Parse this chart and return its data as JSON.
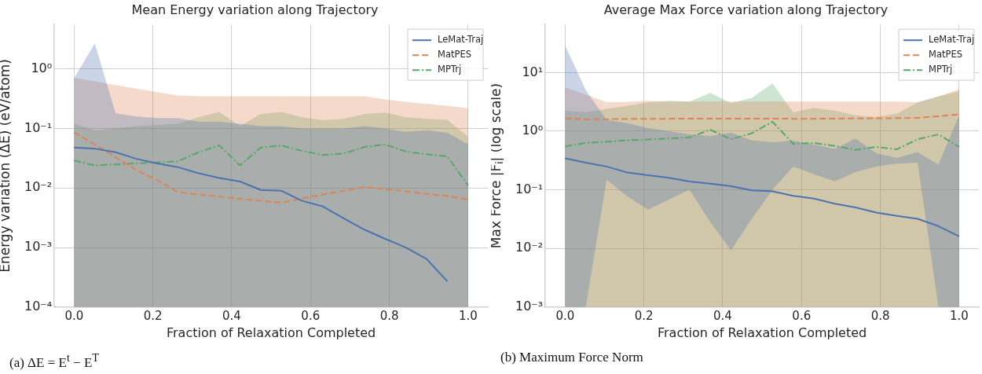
{
  "chart_data": [
    {
      "type": "line",
      "title": "Mean Energy variation along Trajectory",
      "xlabel": "Fraction of Relaxation Completed",
      "ylabel": "Energy variation (ΔE) (eV/atom)",
      "x": [
        0,
        0.0526,
        0.1053,
        0.1579,
        0.2105,
        0.2632,
        0.3158,
        0.3684,
        0.4211,
        0.4737,
        0.5263,
        0.5789,
        0.6316,
        0.6842,
        0.7368,
        0.7895,
        0.8421,
        0.8947,
        0.9474,
        1
      ],
      "series": [
        {
          "name": "LeMat-Traj",
          "color": "#4c72b0",
          "line_style": "solid",
          "values": [
            0.048,
            0.046,
            0.04,
            0.031,
            0.026,
            0.0225,
            0.0177,
            0.0148,
            0.0129,
            0.0093,
            0.009,
            0.0061,
            0.0049,
            0.0031,
            0.002,
            0.0014,
            0.001,
            0.00064,
            0.00027,
            null
          ],
          "upper": [
            0.7,
            2.7,
            0.18,
            0.16,
            0.15,
            0.15,
            0.13,
            0.13,
            0.12,
            0.11,
            0.11,
            0.1,
            0.1,
            0.1,
            0.11,
            0.1,
            0.088,
            0.094,
            0.085,
            0.054
          ],
          "lower": [
            0.0001,
            0.0001,
            0.0001,
            0.0001,
            0.0001,
            0.0001,
            0.0001,
            0.0001,
            0.0001,
            0.0001,
            0.0001,
            0.0001,
            0.0001,
            0.0001,
            0.0001,
            0.0001,
            0.0001,
            0.0001,
            0.0001,
            0.0001
          ]
        },
        {
          "name": "MatPES",
          "color": "#dd8452",
          "line_style": "dashed",
          "values": [
            0.086,
            0.054,
            0.033,
            0.02,
            0.0137,
            0.0086,
            0.0078,
            0.0072,
            0.0066,
            0.0061,
            0.0057,
            0.0067,
            0.0078,
            0.009,
            0.0104,
            0.0096,
            0.0088,
            0.008,
            0.0074,
            0.0064
          ],
          "upper": [
            0.71,
            0.62,
            0.54,
            0.47,
            0.41,
            0.36,
            0.35,
            0.35,
            0.35,
            0.35,
            0.35,
            0.35,
            0.35,
            0.35,
            0.35,
            0.31,
            0.28,
            0.26,
            0.24,
            0.22
          ],
          "lower": [
            0.0001,
            0.0001,
            0.0001,
            0.0001,
            0.0001,
            0.0001,
            0.0001,
            0.0001,
            0.0001,
            0.0001,
            0.0001,
            0.0001,
            0.0001,
            0.0001,
            0.0001,
            0.0001,
            0.0001,
            0.0001,
            0.0001,
            0.0001
          ]
        },
        {
          "name": "MPTrj",
          "color": "#55a868",
          "line_style": "dashdot",
          "values": [
            0.029,
            0.024,
            0.025,
            0.026,
            0.027,
            0.028,
            0.04,
            0.052,
            0.024,
            0.048,
            0.052,
            0.042,
            0.036,
            0.038,
            0.049,
            0.054,
            0.041,
            0.037,
            0.034,
            0.011
          ],
          "upper": [
            0.12,
            0.094,
            0.1,
            0.11,
            0.115,
            0.12,
            0.155,
            0.19,
            0.11,
            0.176,
            0.19,
            0.155,
            0.138,
            0.146,
            0.176,
            0.185,
            0.155,
            0.146,
            0.14,
            0.073
          ],
          "lower": [
            0.0001,
            0.0001,
            0.0001,
            0.0001,
            0.0001,
            0.0001,
            0.0001,
            0.0001,
            0.0001,
            0.0001,
            0.0001,
            0.0001,
            0.0001,
            0.0001,
            0.0001,
            0.0001,
            0.0001,
            0.0001,
            0.0001,
            0.0001
          ]
        }
      ],
      "log": "y",
      "xlim": [
        -0.05,
        1.05
      ],
      "xticks": [
        {
          "value": 0,
          "label": "0.0"
        },
        {
          "value": 0.2,
          "label": "0.2"
        },
        {
          "value": 0.4,
          "label": "0.4"
        },
        {
          "value": 0.6,
          "label": "0.6"
        },
        {
          "value": 0.8,
          "label": "0.8"
        },
        {
          "value": 1,
          "label": "1.0"
        }
      ],
      "ylim": [
        0.0001,
        5.6
      ],
      "yticks": [
        {
          "value": 0.0001,
          "label": "10⁻⁴"
        },
        {
          "value": 0.001,
          "label": "10⁻³"
        },
        {
          "value": 0.01,
          "label": "10⁻²"
        },
        {
          "value": 0.1,
          "label": "10⁻¹"
        },
        {
          "value": 1,
          "label": "10⁰"
        }
      ],
      "grid": true,
      "legend": "top right",
      "annotations": [
        "(a)  ΔE = E$^{t}$ − E$^{T}$"
      ]
    },
    {
      "type": "line",
      "title": "Average Max Force variation along Trajectory",
      "xlabel": "Fraction of Relaxation Completed",
      "ylabel": "Max Force |F$_{i}$| (log scale)",
      "x": [
        0,
        0.0526,
        0.1053,
        0.1579,
        0.2105,
        0.2632,
        0.3158,
        0.3684,
        0.4211,
        0.4737,
        0.5263,
        0.5789,
        0.6316,
        0.6842,
        0.7368,
        0.7895,
        0.8421,
        0.8947,
        0.9474,
        1
      ],
      "series": [
        {
          "name": "LeMat-Traj",
          "color": "#4c72b0",
          "line_style": "solid",
          "values": [
            0.345,
            0.29,
            0.25,
            0.197,
            0.178,
            0.16,
            0.139,
            0.127,
            0.115,
            0.098,
            0.094,
            0.079,
            0.071,
            0.058,
            0.05,
            0.041,
            0.036,
            0.032,
            0.024,
            0.016
          ],
          "upper": [
            29,
            5,
            1.55,
            1.37,
            1.13,
            1,
            0.88,
            0.83,
            0.94,
            0.7,
            0.65,
            0.69,
            0.59,
            0.5,
            0.75,
            0.42,
            0.35,
            0.44,
            0.27,
            1.87
          ],
          "lower": [
            0.001,
            0.001,
            0.148,
            0.077,
            0.046,
            0.068,
            0.1,
            0.028,
            0.0093,
            0.032,
            0.1,
            0.25,
            0.185,
            0.14,
            0.2,
            0.25,
            0.28,
            0.29,
            0.001,
            0.001
          ]
        },
        {
          "name": "MatPES",
          "color": "#dd8452",
          "line_style": "dashed",
          "values": [
            1.65,
            1.59,
            1.6,
            1.62,
            1.63,
            1.63,
            1.64,
            1.64,
            1.64,
            1.64,
            1.64,
            1.63,
            1.63,
            1.64,
            1.65,
            1.66,
            1.67,
            1.69,
            1.8,
            1.94
          ],
          "upper": [
            5.6,
            4.2,
            3.1,
            3.15,
            3.3,
            3.2,
            3.2,
            3.2,
            3.2,
            3.2,
            3.2,
            3.2,
            3.2,
            3.2,
            3.2,
            3.2,
            3.2,
            3.1,
            3.9,
            5.2
          ],
          "lower": [
            0.001,
            0.001,
            0.001,
            0.001,
            0.001,
            0.001,
            0.001,
            0.001,
            0.001,
            0.001,
            0.001,
            0.001,
            0.001,
            0.001,
            0.001,
            0.001,
            0.001,
            0.001,
            0.001,
            0.001
          ]
        },
        {
          "name": "MPTrj",
          "color": "#55a868",
          "line_style": "dashdot",
          "values": [
            0.55,
            0.63,
            0.66,
            0.7,
            0.72,
            0.75,
            0.78,
            1.06,
            0.73,
            0.92,
            1.45,
            0.61,
            0.63,
            0.56,
            0.48,
            0.54,
            0.49,
            0.73,
            0.88,
            0.54
          ],
          "upper": [
            2.25,
            2.1,
            2.4,
            2.7,
            3.1,
            3.3,
            3.2,
            4.5,
            3,
            3.7,
            6.5,
            2.1,
            2.5,
            2.25,
            1.87,
            1.76,
            1.99,
            3.1,
            3.9,
            4.8
          ],
          "lower": [
            0.001,
            0.001,
            0.001,
            0.001,
            0.001,
            0.001,
            0.001,
            0.001,
            0.001,
            0.001,
            0.001,
            0.001,
            0.001,
            0.001,
            0.001,
            0.001,
            0.001,
            0.001,
            0.001,
            0.001
          ]
        }
      ],
      "log": "y",
      "xlim": [
        -0.05,
        1.05
      ],
      "xticks": [
        {
          "value": 0,
          "label": "0.0"
        },
        {
          "value": 0.2,
          "label": "0.2"
        },
        {
          "value": 0.4,
          "label": "0.4"
        },
        {
          "value": 0.6,
          "label": "0.6"
        },
        {
          "value": 0.8,
          "label": "0.8"
        },
        {
          "value": 1,
          "label": "1.0"
        }
      ],
      "ylim": [
        0.001,
        66
      ],
      "yticks": [
        {
          "value": 0.001,
          "label": "10⁻³"
        },
        {
          "value": 0.01,
          "label": "10⁻²"
        },
        {
          "value": 0.1,
          "label": "10⁻¹"
        },
        {
          "value": 1,
          "label": "10⁰"
        },
        {
          "value": 10,
          "label": "10¹"
        }
      ],
      "grid": true,
      "legend": "top right",
      "annotations": [
        "(b)  Maximum Force Norm"
      ]
    }
  ]
}
